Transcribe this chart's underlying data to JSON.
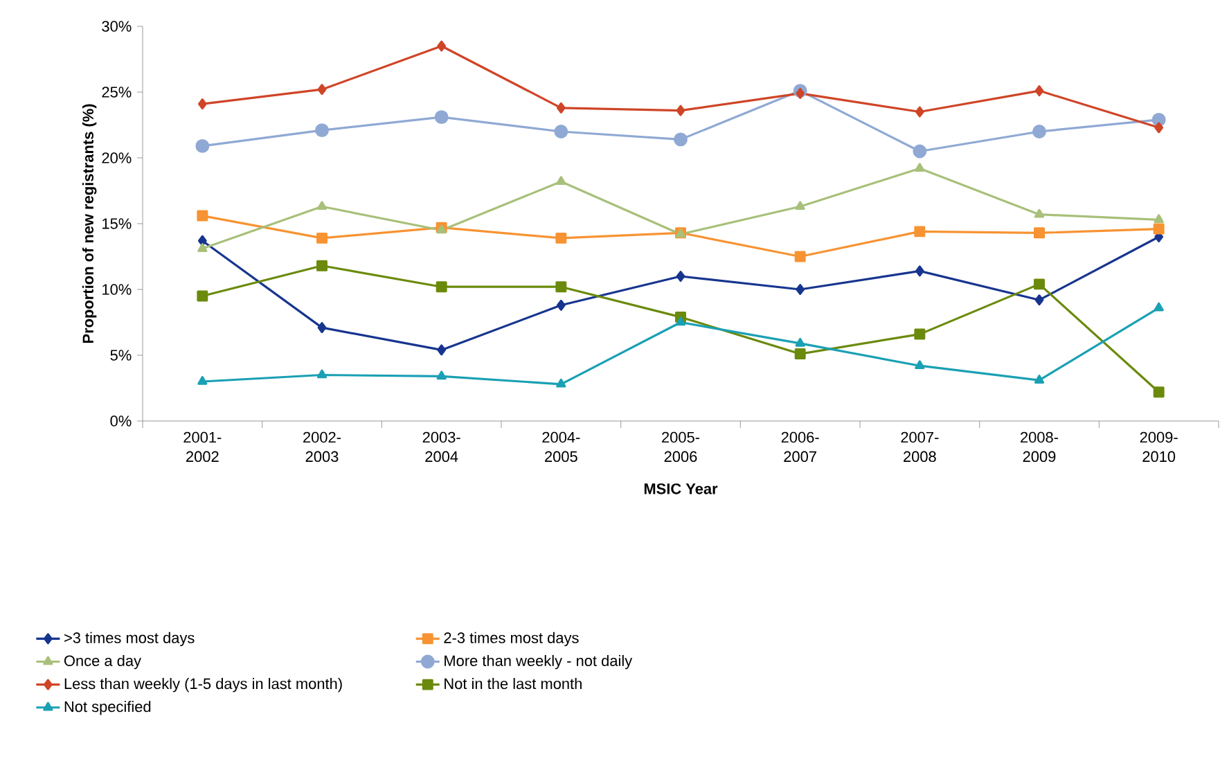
{
  "chart_data": {
    "type": "line",
    "xlabel": "MSIC Year",
    "ylabel": "Proportion of new registrants (%)",
    "categories": [
      "2001-2002",
      "2002-2003",
      "2003-2004",
      "2004-2005",
      "2005-2006",
      "2006-2007",
      "2007-2008",
      "2008-2009",
      "2009-2010"
    ],
    "ylim": [
      0,
      30
    ],
    "yticks": [
      {
        "value": 0,
        "label": "0%"
      },
      {
        "value": 5,
        "label": "5%"
      },
      {
        "value": 10,
        "label": "10%"
      },
      {
        "value": 15,
        "label": "15%"
      },
      {
        "value": 20,
        "label": "20%"
      },
      {
        "value": 25,
        "label": "25%"
      },
      {
        "value": 30,
        "label": "30%"
      }
    ],
    "grid": false,
    "legend": "bottom",
    "line_style": "solid",
    "series": [
      {
        "name": ">3 times most days",
        "color": "#17358f",
        "marker": "diamond",
        "values": [
          13.7,
          7.1,
          5.4,
          8.8,
          11.0,
          10.0,
          11.4,
          9.2,
          14.0
        ]
      },
      {
        "name": "2-3 times most days",
        "color": "#f79332",
        "marker": "square",
        "values": [
          15.6,
          13.9,
          14.7,
          13.9,
          14.3,
          12.5,
          14.4,
          14.3,
          14.6
        ]
      },
      {
        "name": "Once a day",
        "color": "#a8c07a",
        "marker": "triangle",
        "values": [
          13.1,
          16.3,
          14.5,
          18.2,
          14.2,
          16.3,
          19.2,
          15.7,
          15.3
        ]
      },
      {
        "name": "More than weekly - not daily",
        "color": "#8fa9d4",
        "marker": "circle",
        "values": [
          20.9,
          22.1,
          23.1,
          22.0,
          21.4,
          25.1,
          20.5,
          22.0,
          22.9
        ]
      },
      {
        "name": "Less than weekly (1-5 days in last month)",
        "color": "#cf4527",
        "marker": "diamond",
        "values": [
          24.1,
          25.2,
          28.5,
          23.8,
          23.6,
          24.9,
          23.5,
          25.1,
          22.3
        ]
      },
      {
        "name": "Not in the last month",
        "color": "#6b8a0c",
        "marker": "square",
        "values": [
          9.5,
          11.8,
          10.2,
          10.2,
          7.9,
          5.1,
          6.6,
          10.4,
          2.2
        ]
      },
      {
        "name": "Not specified",
        "color": "#1aa0b4",
        "marker": "triangle",
        "values": [
          3.0,
          3.5,
          3.4,
          2.8,
          7.5,
          5.9,
          4.2,
          3.1,
          8.6
        ]
      }
    ]
  }
}
